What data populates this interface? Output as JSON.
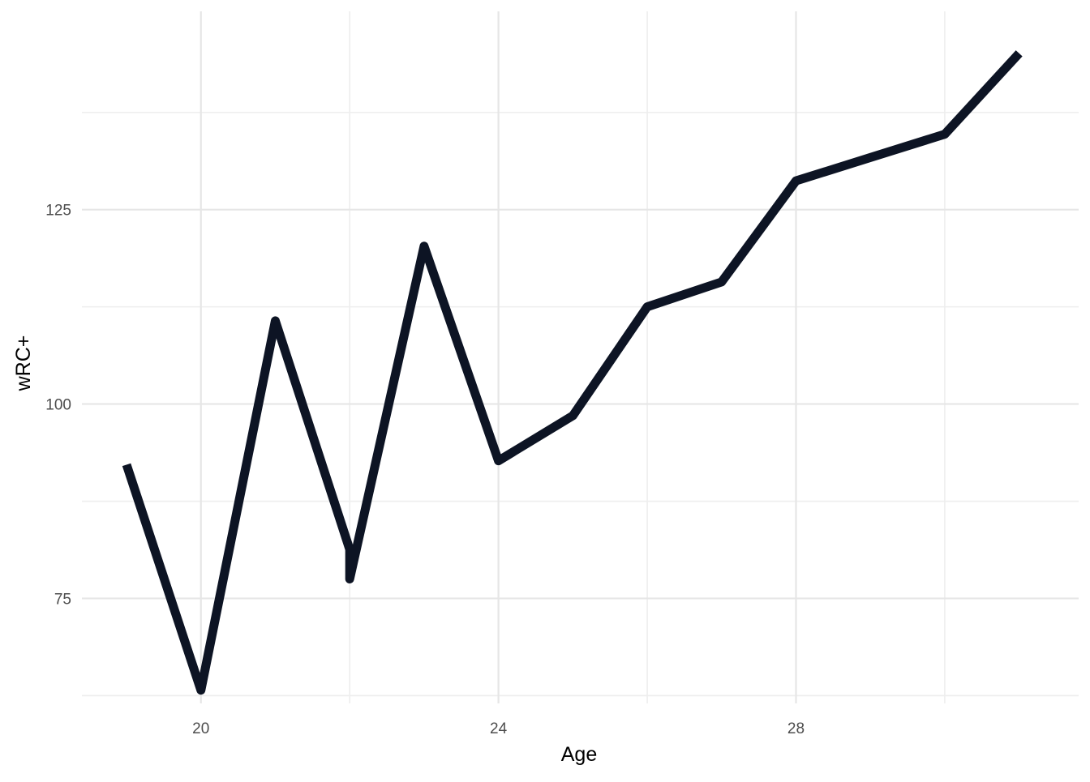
{
  "chart_data": {
    "type": "line",
    "title": "",
    "xlabel": "Age",
    "ylabel": "wRC+",
    "xlim": [
      18.4,
      31.8
    ],
    "ylim": [
      61.5,
      150.5
    ],
    "x_ticks": [
      20,
      24,
      28
    ],
    "x_minor_ticks": [
      22,
      26,
      30
    ],
    "y_ticks": [
      75,
      100,
      125
    ],
    "y_minor_ticks": [
      62.5,
      87.5,
      112.5,
      137.5
    ],
    "grid": true,
    "legend": "none",
    "line_color": "#0d1424",
    "series": [
      {
        "x": [
          19,
          20,
          21,
          22,
          22,
          23,
          24,
          25,
          26,
          27,
          28,
          29,
          30,
          31
        ],
        "y": [
          92.2,
          63.2,
          110.7,
          81.3,
          77.5,
          120.3,
          92.7,
          98.5,
          112.5,
          115.7,
          128.7,
          131.7,
          134.7,
          145.1
        ]
      }
    ]
  }
}
